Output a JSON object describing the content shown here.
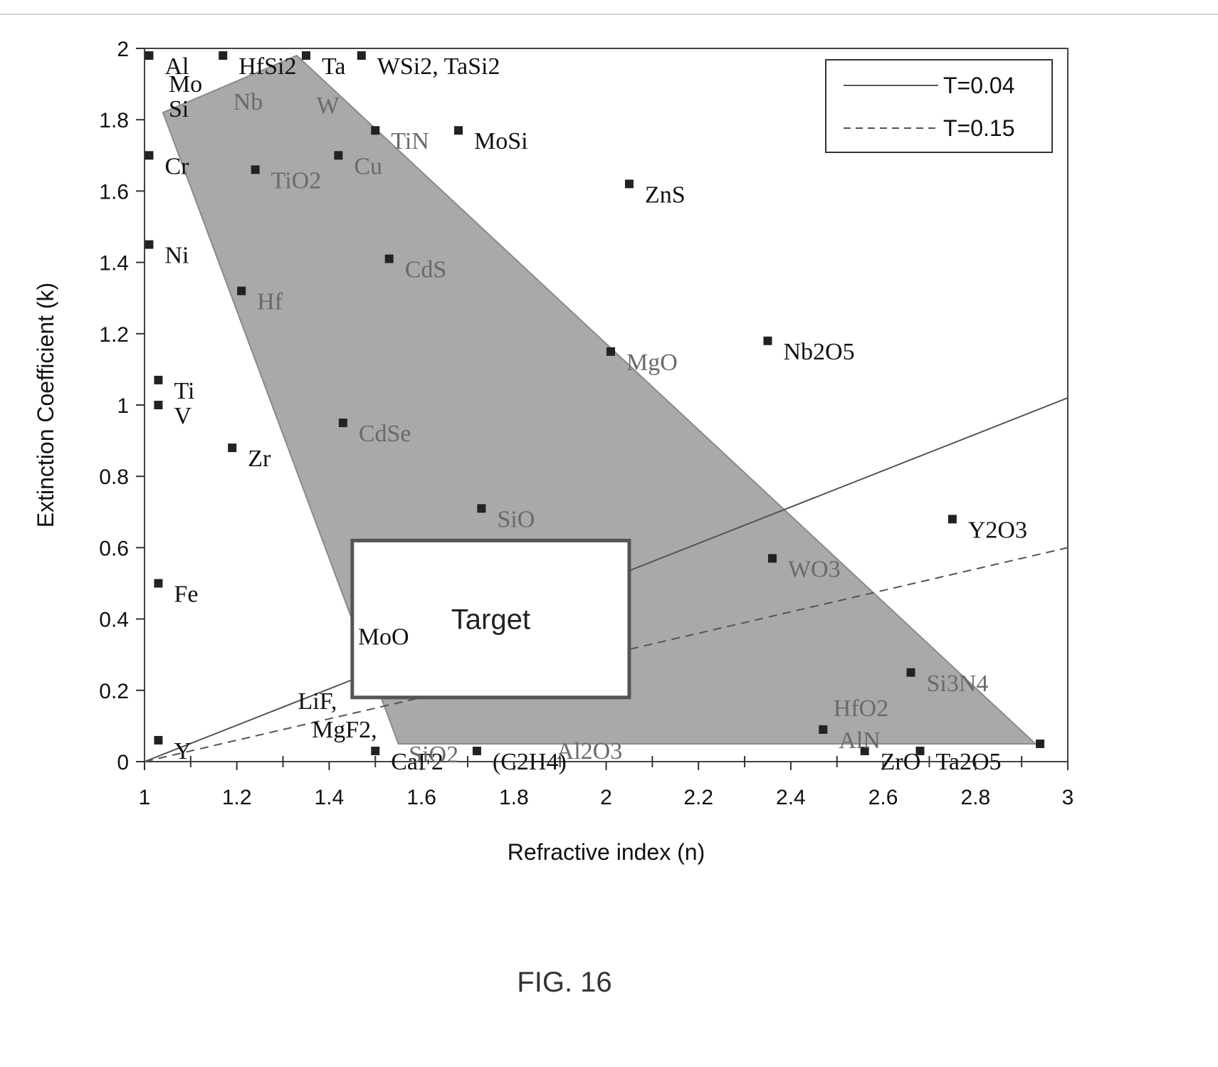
{
  "figure": {
    "caption": "FIG. 16"
  },
  "chart_data": {
    "type": "scatter",
    "xlabel": "Refractive index (n)",
    "ylabel": "Extinction Coefficient (k)",
    "xlim": [
      1,
      3
    ],
    "ylim": [
      0,
      2
    ],
    "x_ticks": [
      "1",
      "1.2",
      "1.4",
      "1.6",
      "1.8",
      "2",
      "2.2",
      "2.4",
      "2.6",
      "2.8",
      "3"
    ],
    "y_ticks": [
      "0",
      "0.2",
      "0.4",
      "0.6",
      "0.8",
      "1",
      "1.2",
      "1.4",
      "1.6",
      "1.8",
      "2"
    ],
    "legend": {
      "position": "top-right",
      "entries": [
        {
          "label": "T=0.04",
          "style": "solid"
        },
        {
          "label": "T=0.15",
          "style": "dashed"
        }
      ]
    },
    "curves": [
      {
        "name": "T=0.04",
        "style": "solid",
        "x": [
          1,
          3
        ],
        "y": [
          0,
          1.02
        ]
      },
      {
        "name": "T=0.15",
        "style": "dashed",
        "x": [
          1,
          3
        ],
        "y": [
          0,
          0.6
        ]
      }
    ],
    "region": {
      "color": "#a9a9a9",
      "x": [
        1.04,
        1.33,
        2.93,
        1.55
      ],
      "y": [
        1.82,
        1.98,
        0.05,
        0.05
      ]
    },
    "target": {
      "label": "Target",
      "x": [
        1.45,
        2.05
      ],
      "y": [
        0.18,
        0.62
      ]
    },
    "points": [
      {
        "label": "Al",
        "x": 1.01,
        "y": 1.98
      },
      {
        "label": "Mo",
        "x": 1.04,
        "y": 1.93,
        "marker": false
      },
      {
        "label": "Si",
        "x": 1.04,
        "y": 1.86,
        "marker": false
      },
      {
        "label": "Cr",
        "x": 1.01,
        "y": 1.7
      },
      {
        "label": "Ni",
        "x": 1.01,
        "y": 1.45
      },
      {
        "label": "Ti",
        "x": 1.03,
        "y": 1.07
      },
      {
        "label": "V",
        "x": 1.03,
        "y": 1.0
      },
      {
        "label": "Fe",
        "x": 1.03,
        "y": 0.5
      },
      {
        "label": "Y",
        "x": 1.03,
        "y": 0.06
      },
      {
        "label": "Zr",
        "x": 1.19,
        "y": 0.88
      },
      {
        "label": "Hf",
        "x": 1.21,
        "y": 1.32
      },
      {
        "label": "TiO2",
        "x": 1.24,
        "y": 1.66
      },
      {
        "label": "Cu",
        "x": 1.42,
        "y": 1.7
      },
      {
        "label": "HfSi2",
        "x": 1.17,
        "y": 1.98
      },
      {
        "label": "Nb",
        "x": 1.18,
        "y": 1.88,
        "marker": false
      },
      {
        "label": "Ta",
        "x": 1.35,
        "y": 1.98
      },
      {
        "label": "W",
        "x": 1.36,
        "y": 1.87,
        "marker": false
      },
      {
        "label": "WSi2, TaSi2",
        "x": 1.47,
        "y": 1.98
      },
      {
        "label": "TiN",
        "x": 1.5,
        "y": 1.77
      },
      {
        "label": "MoSi",
        "x": 1.68,
        "y": 1.77
      },
      {
        "label": "ZnS",
        "x": 2.05,
        "y": 1.62
      },
      {
        "label": "CdS",
        "x": 1.53,
        "y": 1.41
      },
      {
        "label": "MgO",
        "x": 2.01,
        "y": 1.15
      },
      {
        "label": "Nb2O5",
        "x": 2.35,
        "y": 1.18
      },
      {
        "label": "CdSe",
        "x": 1.43,
        "y": 0.95
      },
      {
        "label": "SiO",
        "x": 1.73,
        "y": 0.71
      },
      {
        "label": "Y2O3",
        "x": 2.75,
        "y": 0.68
      },
      {
        "label": "WO3",
        "x": 2.36,
        "y": 0.57
      },
      {
        "label": "MoO",
        "x": 1.45,
        "y": 0.38,
        "marker": false
      },
      {
        "label": "Si3N4",
        "x": 2.66,
        "y": 0.25
      },
      {
        "label": "HfO2",
        "x": 2.48,
        "y": 0.18,
        "marker": false
      },
      {
        "label": "AlN",
        "x": 2.47,
        "y": 0.09
      },
      {
        "label": "ZrO",
        "x": 2.56,
        "y": 0.03
      },
      {
        "label": "Ta2O5",
        "x": 2.68,
        "y": 0.03
      },
      {
        "label": "LiF,",
        "x": 1.32,
        "y": 0.2,
        "marker": false
      },
      {
        "label": "MgF2,",
        "x": 1.35,
        "y": 0.12,
        "marker": false
      },
      {
        "label": "CaF2",
        "x": 1.5,
        "y": 0.03
      },
      {
        "label": "SiO2",
        "x": 1.56,
        "y": 0.05,
        "marker": false
      },
      {
        "label": "(C2H4)",
        "x": 1.72,
        "y": 0.03
      },
      {
        "label": "Al2O3",
        "x": 1.88,
        "y": 0.06,
        "marker": false
      },
      {
        "label": "",
        "x": 2.94,
        "y": 0.05
      }
    ]
  }
}
